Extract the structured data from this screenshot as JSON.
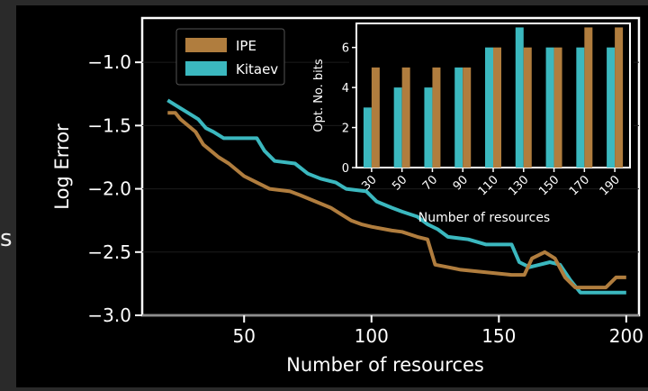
{
  "side_text": "s",
  "chart_data": [
    {
      "type": "line",
      "xlabel": "Number of resources",
      "ylabel": "Log Error",
      "xlim": [
        10,
        205
      ],
      "ylim": [
        -3.0,
        -0.65
      ],
      "xticks": [
        50,
        100,
        150,
        200
      ],
      "yticks": [
        -1.0,
        -1.5,
        -2.0,
        -2.5,
        -3.0
      ],
      "ytick_labels": [
        "−1.0",
        "−1.5",
        "−2.0",
        "−2.5",
        "−3.0"
      ],
      "legend_position": "top-left",
      "series": [
        {
          "name": "IPE",
          "color": "#b07d3e",
          "points": [
            [
              20,
              -1.4
            ],
            [
              23,
              -1.4
            ],
            [
              25,
              -1.45
            ],
            [
              28,
              -1.5
            ],
            [
              31,
              -1.55
            ],
            [
              34,
              -1.65
            ],
            [
              37,
              -1.7
            ],
            [
              40,
              -1.75
            ],
            [
              44,
              -1.8
            ],
            [
              47,
              -1.85
            ],
            [
              50,
              -1.9
            ],
            [
              55,
              -1.95
            ],
            [
              60,
              -2.0
            ],
            [
              68,
              -2.02
            ],
            [
              72,
              -2.05
            ],
            [
              78,
              -2.1
            ],
            [
              84,
              -2.15
            ],
            [
              88,
              -2.2
            ],
            [
              92,
              -2.25
            ],
            [
              96,
              -2.28
            ],
            [
              100,
              -2.3
            ],
            [
              108,
              -2.33
            ],
            [
              112,
              -2.34
            ],
            [
              118,
              -2.38
            ],
            [
              122,
              -2.4
            ],
            [
              125,
              -2.6
            ],
            [
              130,
              -2.62
            ],
            [
              135,
              -2.64
            ],
            [
              145,
              -2.66
            ],
            [
              155,
              -2.68
            ],
            [
              160,
              -2.68
            ],
            [
              163,
              -2.55
            ],
            [
              168,
              -2.5
            ],
            [
              172,
              -2.55
            ],
            [
              176,
              -2.7
            ],
            [
              180,
              -2.78
            ],
            [
              192,
              -2.78
            ],
            [
              196,
              -2.7
            ],
            [
              200,
              -2.7
            ]
          ]
        },
        {
          "name": "Kitaev",
          "color": "#3bb8bf",
          "points": [
            [
              20,
              -1.3
            ],
            [
              24,
              -1.35
            ],
            [
              28,
              -1.4
            ],
            [
              32,
              -1.45
            ],
            [
              35,
              -1.52
            ],
            [
              38,
              -1.55
            ],
            [
              42,
              -1.6
            ],
            [
              55,
              -1.6
            ],
            [
              58,
              -1.7
            ],
            [
              62,
              -1.78
            ],
            [
              70,
              -1.8
            ],
            [
              75,
              -1.88
            ],
            [
              80,
              -1.92
            ],
            [
              86,
              -1.95
            ],
            [
              90,
              -2.0
            ],
            [
              98,
              -2.02
            ],
            [
              102,
              -2.1
            ],
            [
              108,
              -2.15
            ],
            [
              112,
              -2.18
            ],
            [
              118,
              -2.22
            ],
            [
              122,
              -2.28
            ],
            [
              126,
              -2.32
            ],
            [
              130,
              -2.38
            ],
            [
              138,
              -2.4
            ],
            [
              145,
              -2.44
            ],
            [
              155,
              -2.44
            ],
            [
              158,
              -2.58
            ],
            [
              162,
              -2.62
            ],
            [
              166,
              -2.6
            ],
            [
              170,
              -2.58
            ],
            [
              174,
              -2.6
            ],
            [
              178,
              -2.72
            ],
            [
              182,
              -2.82
            ],
            [
              195,
              -2.82
            ],
            [
              200,
              -2.82
            ]
          ]
        }
      ]
    },
    {
      "type": "bar",
      "xlabel": "Number of resources",
      "ylabel": "Opt. No. bits",
      "categories": [
        "30",
        "50",
        "70",
        "90",
        "110",
        "130",
        "150",
        "170",
        "190"
      ],
      "ylim": [
        0,
        7.2
      ],
      "yticks": [
        0,
        2,
        4,
        6
      ],
      "series": [
        {
          "name": "Kitaev",
          "color": "#3bb8bf",
          "values": [
            3,
            4,
            4,
            5,
            6,
            7,
            6,
            6,
            6
          ]
        },
        {
          "name": "IPE",
          "color": "#b07d3e",
          "values": [
            5,
            5,
            5,
            5,
            6,
            6,
            6,
            7,
            7
          ]
        }
      ]
    }
  ]
}
